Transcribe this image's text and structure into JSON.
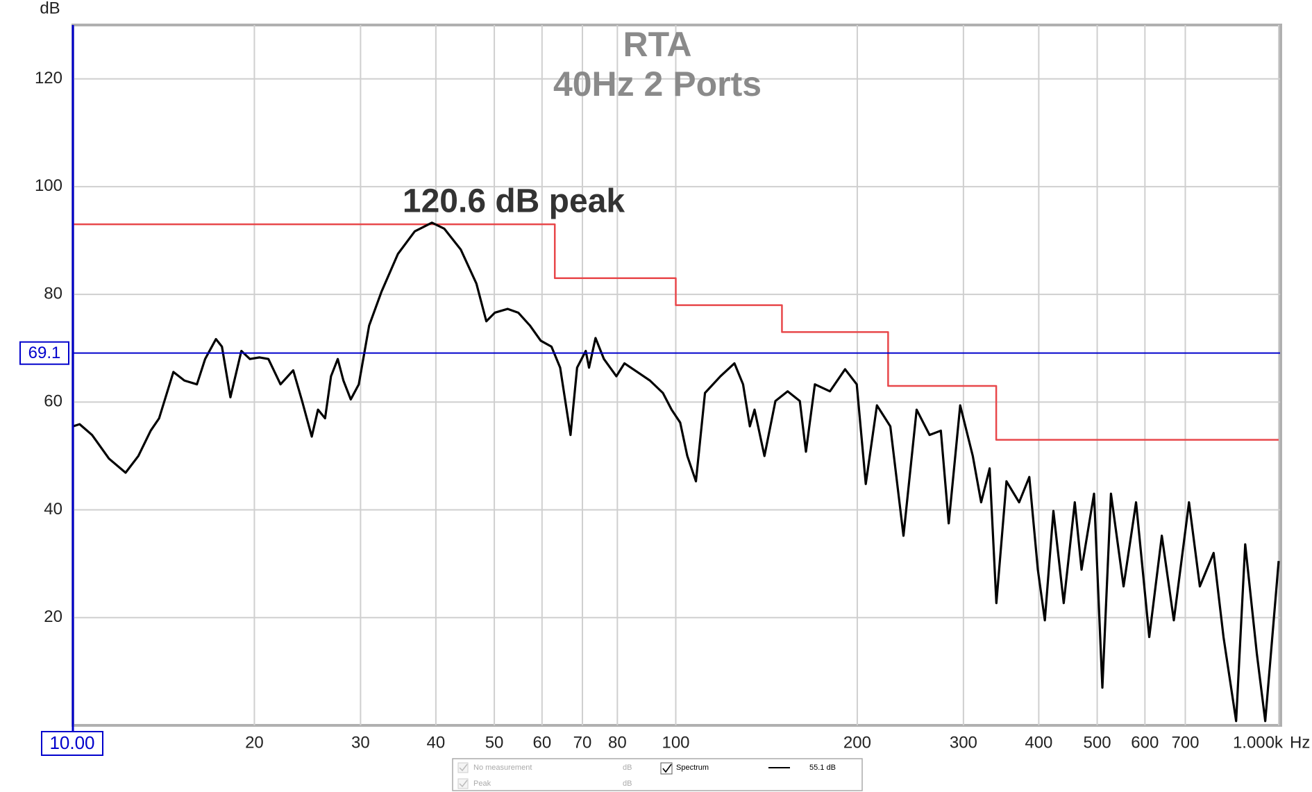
{
  "chart_data": {
    "type": "line",
    "title": "RTA",
    "subtitle": "40Hz 2 Ports",
    "annotation": "120.6 dB peak",
    "y_label": "dB",
    "x_label": "Hz",
    "xscale": "log",
    "grid": true,
    "xlim": [
      10,
      1000
    ],
    "ylim": [
      0,
      130
    ],
    "xticks": [
      20,
      30,
      40,
      50,
      60,
      70,
      80,
      100,
      200,
      300,
      400,
      500,
      600,
      700,
      {
        "value": 1000,
        "label": "1.000k"
      }
    ],
    "yticks": [
      20,
      40,
      60,
      80,
      100,
      120
    ],
    "cursor": {
      "x": {
        "value": 10,
        "label": "10.00"
      },
      "y": 69.1,
      "color": "#0000cc"
    },
    "series": [
      {
        "name": "Spectrum",
        "readout": "55.1 dB",
        "color": "#000000",
        "x": [
          10,
          10.26,
          10.76,
          11.48,
          12.23,
          12.84,
          13.46,
          13.9,
          14.68,
          15.31,
          16.06,
          16.57,
          17.27,
          17.67,
          18.25,
          19.03,
          19.66,
          20.4,
          21.1,
          22.1,
          23.2,
          24.0,
          24.9,
          25.5,
          26.2,
          26.8,
          27.5,
          28.1,
          28.9,
          29.8,
          31.0,
          32.5,
          34.6,
          36.9,
          39.4,
          41.3,
          44.0,
          46.7,
          48.5,
          50.1,
          52.6,
          54.8,
          57.3,
          59.7,
          62.2,
          64.3,
          66.9,
          68.6,
          70.9,
          71.8,
          73.6,
          76.0,
          79.7,
          82.2,
          86.3,
          90.6,
          95.2,
          98.4,
          101.7,
          104.5,
          108.0,
          111.8,
          118.6,
          125.1,
          129.3,
          132.7,
          135.1,
          140.3,
          146.3,
          153.3,
          160.6,
          164.4,
          170.1,
          180.2,
          190.9,
          199.6,
          206.6,
          215.6,
          226.9,
          238.6,
          250.9,
          263.6,
          275.2,
          283.6,
          296.3,
          310.9,
          321.0,
          331.6,
          340.2,
          353.6,
          371.1,
          385.8,
          398.6,
          409.4,
          423,
          440,
          459,
          471,
          494,
          510,
          527,
          553,
          580,
          610,
          640,
          670,
          710,
          740,
          780,
          810,
          850,
          880,
          920,
          950,
          1000
        ],
        "values": [
          55.5,
          55.9,
          53.9,
          49.5,
          46.9,
          50,
          54.7,
          57,
          65.6,
          64,
          63.3,
          68,
          71.7,
          70.3,
          60.9,
          69.5,
          68,
          68.3,
          68,
          63.3,
          65.9,
          60.2,
          53.6,
          58.6,
          57,
          64.8,
          68,
          64,
          60.5,
          63.3,
          74.2,
          80.5,
          87.5,
          91.7,
          93.3,
          92.2,
          88.3,
          82,
          75,
          76.6,
          77.3,
          76.6,
          74.2,
          71.4,
          70.3,
          66.4,
          53.9,
          66.4,
          69.5,
          66.4,
          71.9,
          68,
          64.8,
          67.2,
          65.6,
          64,
          61.7,
          58.6,
          56.2,
          50,
          45.3,
          61.7,
          64.8,
          67.2,
          63.3,
          55.5,
          58.6,
          50,
          60.2,
          62,
          60.2,
          50.8,
          63.3,
          62,
          66.1,
          63.3,
          44.8,
          59.4,
          55.5,
          35.2,
          58.6,
          53.9,
          54.7,
          37.5,
          59.4,
          50,
          41.4,
          47.7,
          22.7,
          45.3,
          41.4,
          46.1,
          28.9,
          19.5,
          39.8,
          22.7,
          41.4,
          28.9,
          43,
          7,
          43,
          25.8,
          41.4,
          16.4,
          35.2,
          19.5,
          41.4,
          25.8,
          32,
          16.4,
          0.8,
          33.6,
          13.3,
          0.8,
          30.5
        ]
      },
      {
        "color": "#e8474a",
        "step": "post",
        "x": [
          10,
          63,
          100,
          150,
          225,
          340,
          1000
        ],
        "values": [
          93,
          83,
          78,
          73,
          63,
          53,
          53
        ]
      }
    ],
    "legend": [
      {
        "label": "No measurement",
        "unit": "dB"
      },
      {
        "label": "Peak",
        "unit": "dB"
      }
    ]
  }
}
